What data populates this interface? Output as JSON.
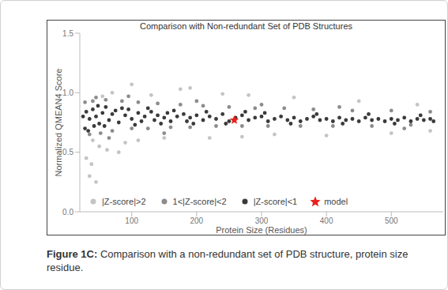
{
  "chart_data": {
    "type": "scatter",
    "title": "Comparison with Non-redundant Set of PDB Structures",
    "x_label": "Protein Size (Residues)",
    "y_label": "Normalized QMEAN4 Score",
    "xlim": [
      20,
      580
    ],
    "xticks": [
      100,
      200,
      300,
      400,
      500
    ],
    "ylim": [
      0,
      1.5
    ],
    "yticks": [
      {
        "value": 0,
        "label": "0.0"
      },
      0.5,
      {
        "value": 1,
        "label": "1.0"
      },
      1.5
    ],
    "grid": false,
    "legend": "bottom",
    "series": [
      {
        "name": "|Z-score|>2",
        "color": "#c4c4c4",
        "marker": "circle",
        "x": [
          30,
          35,
          40,
          45,
          50,
          55,
          70,
          80,
          100,
          110,
          130,
          150,
          175,
          190,
          220,
          240,
          280,
          320,
          350,
          400,
          450,
          500,
          540,
          38,
          62,
          90,
          270,
          560
        ],
        "values": [
          0.45,
          0.3,
          0.6,
          0.25,
          0.55,
          0.97,
          1.0,
          0.5,
          1.07,
          0.6,
          0.98,
          0.62,
          1.03,
          1.04,
          0.62,
          0.99,
          0.98,
          0.65,
          0.96,
          0.64,
          0.93,
          0.66,
          0.9,
          0.4,
          0.52,
          0.58,
          0.63,
          0.68
        ]
      },
      {
        "name": "1<|Z-score|<2",
        "color": "#8c8c8c",
        "marker": "circle",
        "x": [
          28,
          35,
          40,
          52,
          60,
          70,
          85,
          100,
          110,
          125,
          140,
          160,
          175,
          190,
          210,
          230,
          250,
          270,
          290,
          310,
          335,
          360,
          380,
          410,
          440,
          470,
          500,
          530,
          560,
          45,
          65,
          95,
          150,
          200,
          300,
          420,
          520
        ],
        "values": [
          0.92,
          0.65,
          0.93,
          0.66,
          0.94,
          0.68,
          0.93,
          0.7,
          0.92,
          0.7,
          0.91,
          0.71,
          0.9,
          0.71,
          0.89,
          0.72,
          0.88,
          0.72,
          0.87,
          0.72,
          0.87,
          0.72,
          0.86,
          0.72,
          0.85,
          0.72,
          0.85,
          0.73,
          0.84,
          0.96,
          0.62,
          0.97,
          0.66,
          0.93,
          0.9,
          0.88,
          0.7
        ]
      },
      {
        "name": "|Z-score|<1",
        "color": "#3a3a3a",
        "marker": "circle",
        "x": [
          30,
          35,
          40,
          45,
          50,
          55,
          60,
          65,
          70,
          75,
          80,
          90,
          95,
          100,
          110,
          115,
          120,
          130,
          135,
          140,
          150,
          155,
          160,
          170,
          180,
          185,
          190,
          200,
          210,
          220,
          230,
          240,
          250,
          260,
          270,
          280,
          290,
          300,
          310,
          320,
          330,
          340,
          350,
          360,
          370,
          380,
          390,
          400,
          410,
          420,
          430,
          440,
          450,
          460,
          470,
          480,
          490,
          500,
          510,
          520,
          530,
          540,
          550,
          560,
          25,
          28,
          33,
          42,
          48,
          58,
          85,
          105,
          125,
          145,
          165,
          195,
          215,
          245,
          275,
          305,
          345,
          385,
          425,
          465,
          505,
          545,
          565
        ],
        "values": [
          0.84,
          0.78,
          0.86,
          0.8,
          0.74,
          0.83,
          0.88,
          0.77,
          0.82,
          0.85,
          0.75,
          0.81,
          0.86,
          0.78,
          0.83,
          0.76,
          0.8,
          0.84,
          0.77,
          0.81,
          0.79,
          0.83,
          0.76,
          0.8,
          0.82,
          0.76,
          0.79,
          0.81,
          0.77,
          0.8,
          0.78,
          0.82,
          0.76,
          0.79,
          0.81,
          0.77,
          0.79,
          0.8,
          0.76,
          0.78,
          0.8,
          0.77,
          0.79,
          0.76,
          0.78,
          0.8,
          0.77,
          0.78,
          0.76,
          0.79,
          0.77,
          0.78,
          0.76,
          0.79,
          0.77,
          0.78,
          0.76,
          0.78,
          0.77,
          0.79,
          0.76,
          0.78,
          0.77,
          0.78,
          0.8,
          0.7,
          0.68,
          0.72,
          0.89,
          0.72,
          0.87,
          0.73,
          0.87,
          0.74,
          0.85,
          0.74,
          0.84,
          0.74,
          0.84,
          0.83,
          0.74,
          0.82,
          0.74,
          0.82,
          0.74,
          0.81,
          0.76
        ]
      },
      {
        "name": "model",
        "color": "#e8221e",
        "marker": "star",
        "x": [
          258
        ],
        "values": [
          0.77
        ]
      }
    ]
  },
  "caption": {
    "label": "Figure 1C:",
    "text": "Comparison with a non-redundant set of PDB structure, protein size residue."
  }
}
